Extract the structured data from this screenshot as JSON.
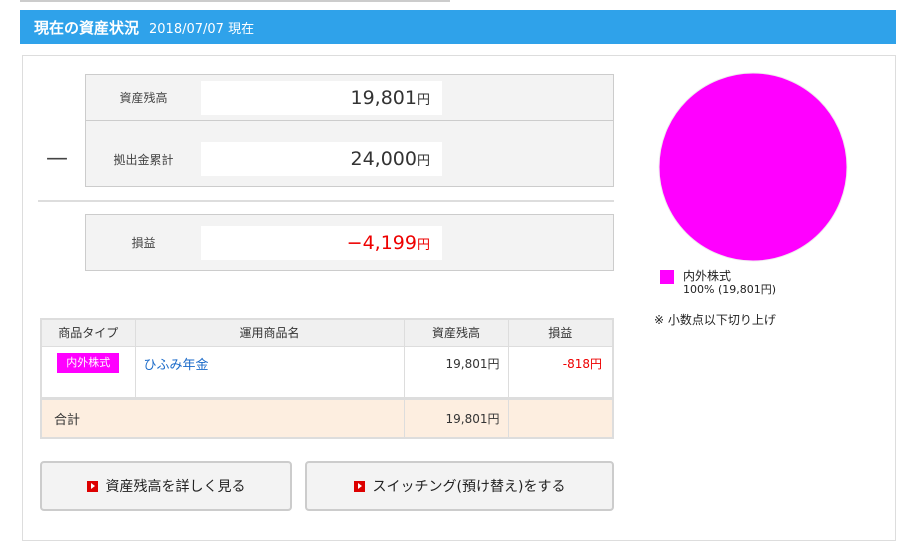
{
  "header": {
    "title": "現在の資産状況",
    "date": "2018/07/07 現在"
  },
  "summary": {
    "balance_label": "資産残高",
    "balance": "19,801",
    "contrib_label": "拠出金累計",
    "contrib": "24,000",
    "minus": "—",
    "pl_label": "損益",
    "pl": "−4,199",
    "yen": "円"
  },
  "table": {
    "headers": [
      "商品タイプ",
      "運用商品名",
      "資産残高",
      "損益"
    ],
    "rows": [
      {
        "type": "内外株式",
        "name": "ひふみ年金",
        "balance": "19,801円",
        "pl": "-818円"
      }
    ],
    "total": {
      "label": "合計",
      "balance": "19,801円"
    }
  },
  "buttons": {
    "detail": "資産残高を詳しく見る",
    "switching": "スイッチング(預け替え)をする"
  },
  "chart_data": {
    "type": "pie",
    "slices": [
      {
        "name": "内外株式",
        "percent": 100,
        "value": 19801,
        "color": "#ff00ff"
      }
    ]
  },
  "legend": {
    "name": "内外株式",
    "detail": "100% (19,801円)",
    "note": "※ 小数点以下切り上げ"
  },
  "colors": {
    "header": "#2fa2ea",
    "accent": "#ff00ff",
    "negative": "#e00000"
  }
}
